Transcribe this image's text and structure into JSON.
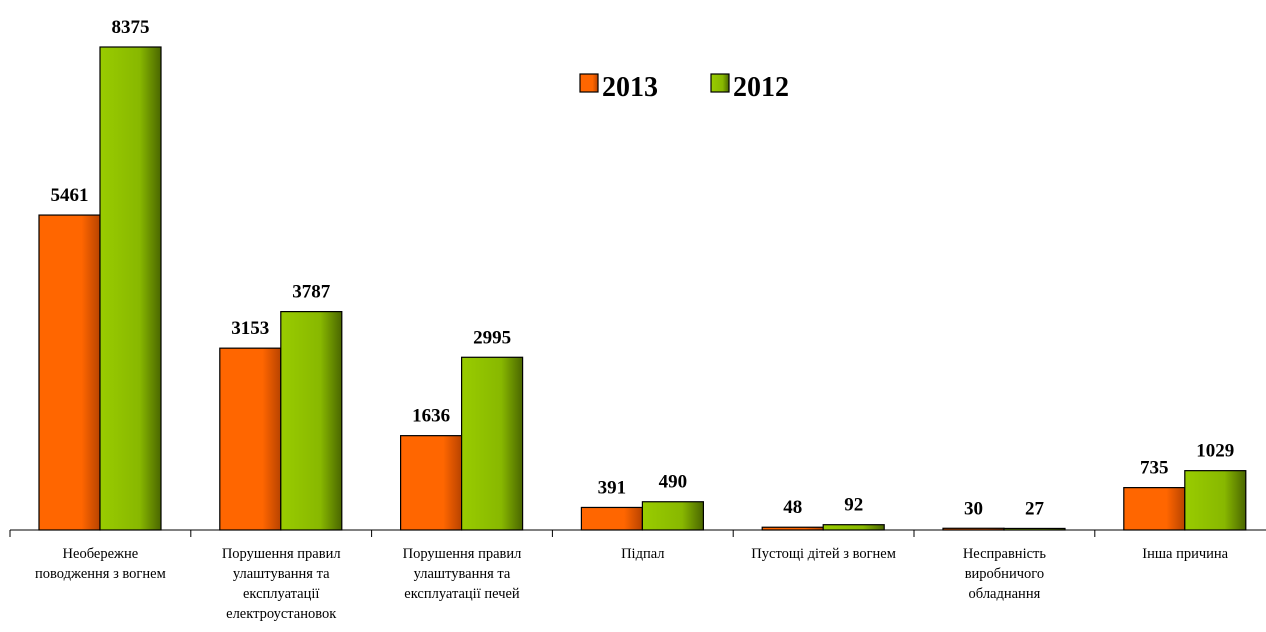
{
  "chart_data": {
    "type": "bar",
    "categories": [
      [
        "Необережне",
        "поводження з вогнем"
      ],
      [
        "Порушення правил",
        "улаштування та",
        "експлуатації",
        "електроустановок"
      ],
      [
        "Порушення правил",
        "улаштування та",
        "експлуатації печей"
      ],
      [
        "Підпал"
      ],
      [
        "Пустощі дітей з вогнем"
      ],
      [
        "Несправність",
        "виробничого",
        "обладнання"
      ],
      [
        "Інша причина"
      ]
    ],
    "series": [
      {
        "name": "2013",
        "values": [
          5461,
          3153,
          1636,
          391,
          48,
          30,
          735
        ],
        "color": "#ff6600"
      },
      {
        "name": "2012",
        "values": [
          8375,
          3787,
          2995,
          490,
          92,
          27,
          1029
        ],
        "color": "#99cc00"
      }
    ],
    "ylim": [
      0,
      8375
    ],
    "legend_position": "top-center",
    "grid": false,
    "title": "",
    "xlabel": "",
    "ylabel": ""
  }
}
